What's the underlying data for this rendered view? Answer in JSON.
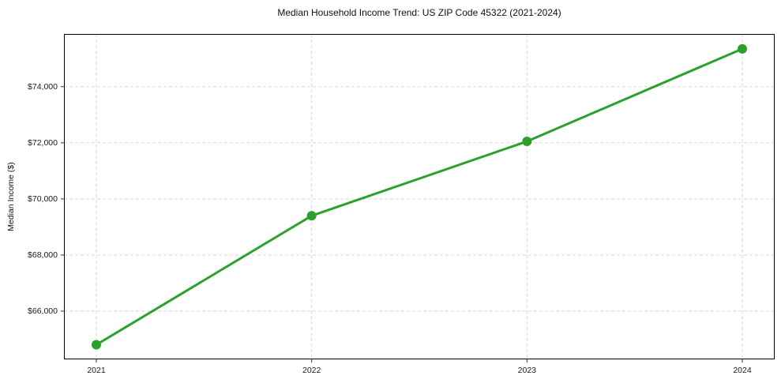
{
  "chart_data": {
    "type": "line",
    "title": "Median Household Income Trend: US ZIP Code 45322 (2021-2024)",
    "xlabel": "",
    "ylabel": "Median Income ($)",
    "x": [
      2021,
      2022,
      2023,
      2024
    ],
    "xtick_labels": [
      "2021",
      "2022",
      "2023",
      "2024"
    ],
    "series": [
      {
        "values": [
          64800,
          69400,
          72050,
          75350
        ],
        "color": "#2ca02c",
        "marker": "circle",
        "marker_radius": 6,
        "line_width": 3
      }
    ],
    "ylim": [
      64280,
      75880
    ],
    "yticks": [
      66000,
      68000,
      70000,
      72000,
      74000
    ],
    "ytick_labels": [
      "$66,000",
      "$68,000",
      "$70,000",
      "$72,000",
      "$74,000"
    ],
    "grid": true,
    "grid_style": "dashed",
    "grid_color": "#d9d9d9",
    "spine_color": "#000000",
    "tick_color": "#333333",
    "background": "#ffffff",
    "legend_position": "none"
  }
}
